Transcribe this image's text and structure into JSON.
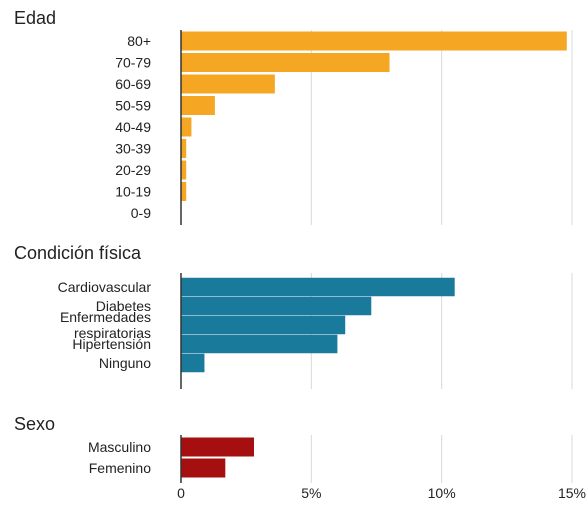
{
  "chart_data": {
    "type": "bar",
    "orientation": "horizontal",
    "x_unit": "%",
    "xlim": [
      0,
      15
    ],
    "x_ticks": [
      0,
      5,
      10,
      15
    ],
    "x_tick_labels": [
      "0",
      "5%",
      "10%",
      "15%"
    ],
    "grid": true,
    "panels": [
      {
        "title": "Edad",
        "color": "#F5A623",
        "categories": [
          "80+",
          "70-79",
          "60-69",
          "50-59",
          "40-49",
          "30-39",
          "20-29",
          "10-19",
          "0-9"
        ],
        "values": [
          14.8,
          8.0,
          3.6,
          1.3,
          0.4,
          0.2,
          0.2,
          0.2,
          0.0
        ]
      },
      {
        "title": "Condición física",
        "color": "#1A7A9B",
        "categories": [
          "Cardiovascular",
          "Diabetes",
          "Enfermedades respiratorias",
          "Hipertensión",
          "Ninguno"
        ],
        "category_lines": [
          [
            "Cardiovascular"
          ],
          [
            "Diabetes"
          ],
          [
            "Enfermedades",
            "respiratorias"
          ],
          [
            "Hipertensión"
          ],
          [
            "Ninguno"
          ]
        ],
        "values": [
          10.5,
          7.3,
          6.3,
          6.0,
          0.9
        ]
      },
      {
        "title": "Sexo",
        "color": "#A50F0F",
        "categories": [
          "Masculino",
          "Femenino"
        ],
        "values": [
          2.8,
          1.7
        ]
      }
    ]
  }
}
